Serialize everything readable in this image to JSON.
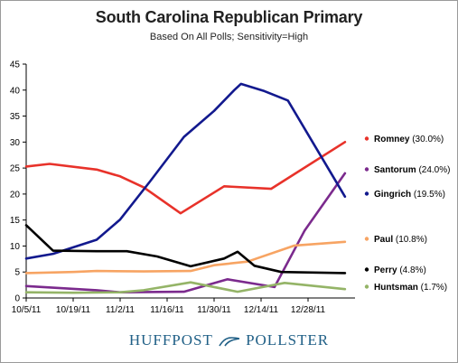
{
  "chart_data": {
    "type": "line",
    "title": "South Carolina Republican Primary",
    "subtitle": "Based On All Polls; Sensitivity=High",
    "xlabel": "",
    "ylabel": "",
    "x_ticks": [
      "10/5/11",
      "10/19/11",
      "11/2/11",
      "11/16/11",
      "11/30/11",
      "12/14/11",
      "12/28/11"
    ],
    "x_range": [
      "2011-10-05",
      "2012-01-11"
    ],
    "ylim": [
      0,
      45
    ],
    "y_ticks": [
      0,
      5,
      10,
      15,
      20,
      25,
      30,
      35,
      40,
      45
    ],
    "grid": false,
    "legend_placement": "right, labels at line ends",
    "series": [
      {
        "name": "Romney (30.0%)",
        "color": "#e8322a",
        "points": [
          [
            "2011-10-05",
            25.3
          ],
          [
            "2011-10-12",
            25.8
          ],
          [
            "2011-10-26",
            24.7
          ],
          [
            "2011-11-02",
            23.4
          ],
          [
            "2011-11-09",
            21.3
          ],
          [
            "2011-11-20",
            16.3
          ],
          [
            "2011-12-03",
            21.5
          ],
          [
            "2011-12-17",
            21.0
          ],
          [
            "2012-01-08",
            30.0
          ]
        ]
      },
      {
        "name": "Santorum (24.0%)",
        "color": "#7b2a8d",
        "points": [
          [
            "2011-10-05",
            2.3
          ],
          [
            "2011-10-26",
            1.5
          ],
          [
            "2011-11-02",
            1.1
          ],
          [
            "2011-11-21",
            1.2
          ],
          [
            "2011-12-04",
            3.6
          ],
          [
            "2011-12-18",
            2.1
          ],
          [
            "2011-12-27",
            13.0
          ],
          [
            "2012-01-08",
            24.0
          ]
        ]
      },
      {
        "name": "Gingrich (19.5%)",
        "color": "#12198e",
        "points": [
          [
            "2011-10-05",
            7.6
          ],
          [
            "2011-10-13",
            8.5
          ],
          [
            "2011-10-26",
            11.2
          ],
          [
            "2011-11-02",
            15.1
          ],
          [
            "2011-11-11",
            22.5
          ],
          [
            "2011-11-21",
            31.0
          ],
          [
            "2011-11-30",
            36.0
          ],
          [
            "2011-12-06",
            40.0
          ],
          [
            "2011-12-08",
            41.2
          ],
          [
            "2011-12-15",
            39.8
          ],
          [
            "2011-12-22",
            38.0
          ],
          [
            "2012-01-08",
            19.5
          ]
        ]
      },
      {
        "name": "Paul (10.8%)",
        "color": "#f7a463",
        "points": [
          [
            "2011-10-05",
            4.8
          ],
          [
            "2011-10-19",
            5.0
          ],
          [
            "2011-10-26",
            5.2
          ],
          [
            "2011-11-09",
            5.1
          ],
          [
            "2011-11-23",
            5.2
          ],
          [
            "2011-11-30",
            6.3
          ],
          [
            "2011-12-10",
            7.0
          ],
          [
            "2011-12-24",
            10.1
          ],
          [
            "2012-01-08",
            10.8
          ]
        ]
      },
      {
        "name": "Perry (4.8%)",
        "color": "#000000",
        "points": [
          [
            "2011-10-05",
            14.0
          ],
          [
            "2011-10-13",
            9.1
          ],
          [
            "2011-10-26",
            9.0
          ],
          [
            "2011-11-04",
            9.0
          ],
          [
            "2011-11-13",
            8.0
          ],
          [
            "2011-11-23",
            6.1
          ],
          [
            "2011-12-03",
            7.6
          ],
          [
            "2011-12-07",
            8.9
          ],
          [
            "2011-12-12",
            6.2
          ],
          [
            "2011-12-20",
            5.0
          ],
          [
            "2012-01-08",
            4.8
          ]
        ]
      },
      {
        "name": "Huntsman (1.7%)",
        "color": "#94b467",
        "points": [
          [
            "2011-10-05",
            1.1
          ],
          [
            "2011-10-19",
            1.0
          ],
          [
            "2011-11-02",
            1.1
          ],
          [
            "2011-11-09",
            1.5
          ],
          [
            "2011-11-23",
            3.0
          ],
          [
            "2011-12-07",
            1.2
          ],
          [
            "2011-12-21",
            2.9
          ],
          [
            "2012-01-08",
            1.7
          ]
        ]
      }
    ]
  },
  "brand": {
    "left": "HUFFPOST",
    "right": "POLLSTER",
    "color": "#1f5f86"
  }
}
